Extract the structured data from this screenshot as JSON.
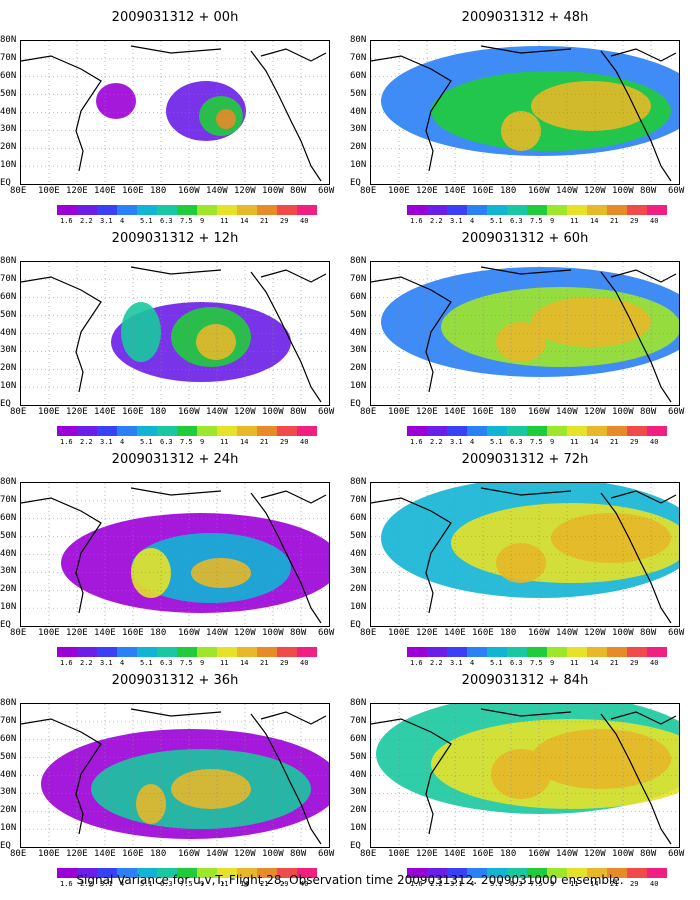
{
  "footer": "Signal Variance for u,v,T. Flight 28. Observation time 2009031312. 2009031000 ensemble.",
  "colors": [
    "#9b00d6",
    "#6a1ee8",
    "#3a40f5",
    "#2a80f5",
    "#12b4d4",
    "#19c8a0",
    "#20cc3a",
    "#9ee62a",
    "#e6e22a",
    "#e6b82a",
    "#e68a2a",
    "#f04a4a",
    "#f02080"
  ],
  "colorbar_labels": [
    "1.6",
    "2.2",
    "3.1",
    "4",
    "5.1",
    "6.3",
    "7.5",
    "9",
    "11",
    "14",
    "21",
    "29",
    "40"
  ],
  "y_labels": [
    "80N",
    "70N",
    "60N",
    "50N",
    "40N",
    "30N",
    "20N",
    "10N",
    "EQ"
  ],
  "x_labels": [
    "80E",
    "100E",
    "120E",
    "140E",
    "160E",
    "180",
    "160W",
    "140W",
    "120W",
    "100W",
    "80W",
    "60W"
  ],
  "panels": [
    {
      "title": "2009031312 + 00h"
    },
    {
      "title": "2009031312 + 12h"
    },
    {
      "title": "2009031312 + 24h"
    },
    {
      "title": "2009031312 + 36h"
    },
    {
      "title": "2009031312 + 48h"
    },
    {
      "title": "2009031312 + 60h"
    },
    {
      "title": "2009031312 + 72h"
    },
    {
      "title": "2009031312 + 84h"
    }
  ],
  "chart_data": {
    "type": "heatmap",
    "title": "Signal Variance for u,v,T. Flight 28. Observation time 2009031312. 2009031000 ensemble.",
    "xlim": [
      "80E",
      "60W"
    ],
    "ylim": [
      "EQ",
      "80N"
    ],
    "levels": [
      1.6,
      2.2,
      3.1,
      4,
      5.1,
      6.3,
      7.5,
      9,
      11,
      14,
      21,
      29,
      40
    ],
    "lead_times_h": [
      0,
      12,
      24,
      36,
      48,
      60,
      72,
      84
    ],
    "init_time": "2009031312"
  }
}
